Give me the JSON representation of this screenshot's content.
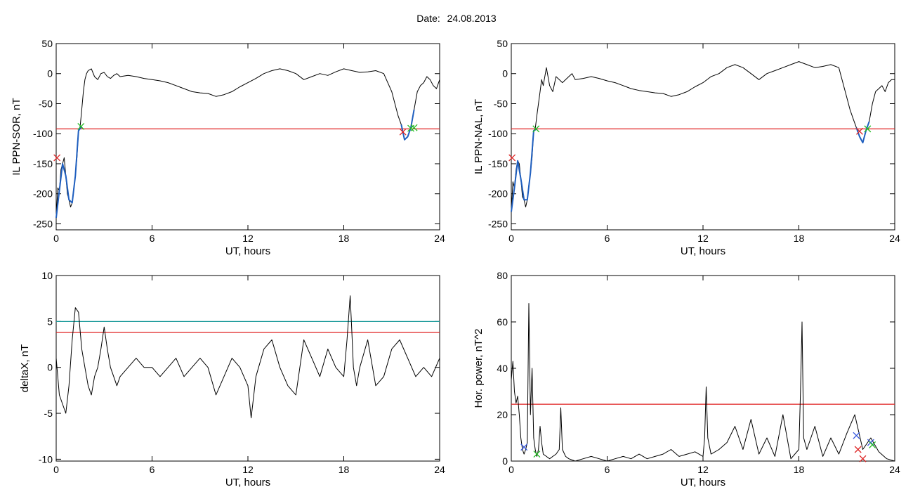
{
  "page": {
    "date_label": "Date:",
    "date_value": "24.08.2013"
  },
  "colors": {
    "trace": "#000000",
    "highlight": "#1f5fbf",
    "threshold_red": "#e02020",
    "threshold_teal": "#1a9a9a",
    "marker_green": "#22bb22",
    "marker_red": "#dd2222",
    "marker_blue": "#3355dd"
  },
  "chart_data": [
    {
      "type": "line",
      "xlabel": "UT, hours",
      "ylabel": "IL PPN-SOR, nT",
      "xlim": [
        0,
        24
      ],
      "ylim": [
        -260,
        50
      ],
      "xticks": [
        0,
        6,
        12,
        18,
        24
      ],
      "yticks": [
        50,
        0,
        -50,
        -100,
        -150,
        -200,
        -250
      ],
      "threshold_lines": [
        {
          "y": -92,
          "color": "red"
        }
      ],
      "series": [
        {
          "x": [
            0,
            0.1,
            0.2,
            0.3,
            0.4,
            0.5,
            0.6,
            0.7,
            0.8,
            0.9,
            1.0,
            1.1,
            1.2,
            1.3,
            1.4,
            1.5,
            1.6,
            1.7,
            1.8,
            1.9,
            2.0,
            2.2,
            2.4,
            2.6,
            2.8,
            3.0,
            3.2,
            3.4,
            3.6,
            3.8,
            4,
            4.5,
            5,
            5.5,
            6,
            6.5,
            7,
            7.5,
            8,
            8.5,
            9,
            9.5,
            10,
            10.5,
            11,
            11.5,
            12,
            12.5,
            13,
            13.5,
            14,
            14.5,
            15,
            15.5,
            16,
            16.5,
            17,
            17.5,
            18,
            18.5,
            19,
            19.5,
            20,
            20.5,
            21,
            21.2,
            21.4,
            21.6,
            21.8,
            22.0,
            22.2,
            22.4,
            22.6,
            22.8,
            23.0,
            23.2,
            23.4,
            23.6,
            23.8,
            24
          ],
          "y": [
            -240,
            -190,
            -195,
            -160,
            -150,
            -140,
            -170,
            -200,
            -210,
            -222,
            -215,
            -190,
            -170,
            -140,
            -95,
            -88,
            -60,
            -30,
            -10,
            0,
            5,
            8,
            -5,
            -10,
            0,
            2,
            -5,
            -8,
            -3,
            0,
            -5,
            -3,
            -5,
            -8,
            -10,
            -12,
            -15,
            -20,
            -25,
            -30,
            -32,
            -33,
            -38,
            -35,
            -30,
            -22,
            -15,
            -8,
            0,
            5,
            8,
            5,
            0,
            -10,
            -5,
            0,
            -3,
            3,
            8,
            5,
            2,
            3,
            5,
            0,
            -30,
            -50,
            -70,
            -85,
            -110,
            -105,
            -90,
            -60,
            -30,
            -20,
            -15,
            -5,
            -10,
            -20,
            -25,
            -10
          ]
        },
        {
          "x": [
            0,
            0.2,
            0.4,
            0.6,
            0.8,
            1.0,
            1.2,
            1.4,
            1.6
          ],
          "y": [
            -240,
            -195,
            -150,
            -170,
            -210,
            -215,
            -170,
            -95,
            -88
          ],
          "style": "highlight"
        },
        {
          "x": [
            21.6,
            21.8,
            22.0,
            22.2,
            22.4
          ],
          "y": [
            -85,
            -110,
            -105,
            -90,
            -60
          ],
          "style": "highlight"
        }
      ],
      "markers": [
        {
          "x": 0.05,
          "y": -140,
          "color": "red"
        },
        {
          "x": 1.55,
          "y": -88,
          "color": "green"
        },
        {
          "x": 21.7,
          "y": -97,
          "color": "red"
        },
        {
          "x": 22.2,
          "y": -91,
          "color": "green"
        },
        {
          "x": 22.4,
          "y": -90,
          "color": "green"
        }
      ]
    },
    {
      "type": "line",
      "xlabel": "UT, hours",
      "ylabel": "IL PPN-NAL, nT",
      "xlim": [
        0,
        24
      ],
      "ylim": [
        -260,
        50
      ],
      "xticks": [
        0,
        6,
        12,
        18,
        24
      ],
      "yticks": [
        50,
        0,
        -50,
        -100,
        -150,
        -200,
        -250
      ],
      "threshold_lines": [
        {
          "y": -92,
          "color": "red"
        }
      ],
      "series": [
        {
          "x": [
            0,
            0.1,
            0.2,
            0.3,
            0.4,
            0.5,
            0.6,
            0.7,
            0.8,
            0.9,
            1.0,
            1.1,
            1.2,
            1.3,
            1.4,
            1.5,
            1.6,
            1.7,
            1.8,
            1.9,
            2.0,
            2.2,
            2.4,
            2.6,
            2.8,
            3.0,
            3.2,
            3.4,
            3.6,
            3.8,
            4,
            4.5,
            5,
            5.5,
            6,
            6.5,
            7,
            7.5,
            8,
            8.5,
            9,
            9.5,
            10,
            10.5,
            11,
            11.5,
            12,
            12.5,
            13,
            13.5,
            14,
            14.5,
            15,
            15.5,
            16,
            16.5,
            17,
            17.5,
            18,
            18.5,
            19,
            19.5,
            20,
            20.5,
            21,
            21.2,
            21.4,
            21.6,
            21.8,
            22.0,
            22.2,
            22.4,
            22.6,
            22.8,
            23.0,
            23.2,
            23.4,
            23.6,
            23.8,
            24
          ],
          "y": [
            -230,
            -180,
            -190,
            -160,
            -145,
            -150,
            -175,
            -205,
            -210,
            -222,
            -210,
            -185,
            -165,
            -140,
            -95,
            -92,
            -70,
            -50,
            -30,
            -10,
            -20,
            10,
            -20,
            -30,
            -5,
            -10,
            -15,
            -10,
            -5,
            0,
            -10,
            -8,
            -5,
            -8,
            -12,
            -15,
            -20,
            -25,
            -28,
            -30,
            -32,
            -33,
            -38,
            -35,
            -30,
            -22,
            -15,
            -5,
            0,
            10,
            15,
            10,
            0,
            -10,
            0,
            5,
            10,
            15,
            20,
            15,
            10,
            12,
            15,
            10,
            -40,
            -60,
            -75,
            -90,
            -105,
            -115,
            -95,
            -80,
            -50,
            -30,
            -25,
            -20,
            -30,
            -15,
            -10,
            -10
          ]
        },
        {
          "x": [
            0,
            0.2,
            0.4,
            0.6,
            0.8,
            1.0,
            1.2,
            1.4,
            1.6
          ],
          "y": [
            -230,
            -190,
            -145,
            -175,
            -210,
            -210,
            -165,
            -95,
            -92
          ],
          "style": "highlight"
        },
        {
          "x": [
            21.6,
            21.8,
            22.0,
            22.2,
            22.4
          ],
          "y": [
            -90,
            -105,
            -115,
            -95,
            -80
          ],
          "style": "highlight"
        }
      ],
      "markers": [
        {
          "x": 0.05,
          "y": -140,
          "color": "red"
        },
        {
          "x": 1.55,
          "y": -92,
          "color": "green"
        },
        {
          "x": 21.8,
          "y": -96,
          "color": "red"
        },
        {
          "x": 22.3,
          "y": -92,
          "color": "green"
        }
      ]
    },
    {
      "type": "line",
      "xlabel": "UT, hours",
      "ylabel": "deltaX, nT",
      "xlim": [
        0,
        24
      ],
      "ylim": [
        -10.2,
        10
      ],
      "xticks": [
        0,
        6,
        12,
        18,
        24
      ],
      "yticks": [
        10,
        5,
        0,
        -5,
        -10
      ],
      "threshold_lines": [
        {
          "y": 5,
          "color": "teal"
        },
        {
          "y": 3.8,
          "color": "red"
        }
      ],
      "series": [
        {
          "x": [
            0,
            0.2,
            0.4,
            0.6,
            0.8,
            1.0,
            1.2,
            1.4,
            1.6,
            1.8,
            2.0,
            2.2,
            2.4,
            2.6,
            2.8,
            3.0,
            3.2,
            3.4,
            3.6,
            3.8,
            4.0,
            4.5,
            5,
            5.5,
            6,
            6.5,
            7,
            7.5,
            8,
            8.5,
            9,
            9.5,
            10,
            10.5,
            11,
            11.5,
            12,
            12.2,
            12.5,
            13,
            13.5,
            14,
            14.5,
            15,
            15.5,
            16,
            16.5,
            17,
            17.5,
            18,
            18.2,
            18.4,
            18.5,
            18.6,
            18.8,
            19,
            19.5,
            20,
            20.5,
            21,
            21.5,
            22,
            22.5,
            23,
            23.5,
            24
          ],
          "y": [
            1,
            -3,
            -4,
            -5,
            -2,
            3,
            6.5,
            6,
            2,
            0,
            -2,
            -3,
            -1,
            0,
            2,
            4.4,
            2,
            0,
            -1,
            -2,
            -1,
            0,
            1,
            0,
            0,
            -1,
            0,
            1,
            -1,
            0,
            1,
            0,
            -3,
            -1,
            1,
            0,
            -2,
            -5.5,
            -1,
            2,
            3,
            0,
            -2,
            -3,
            3,
            1,
            -1,
            2,
            0,
            -1,
            3,
            7.8,
            4,
            0,
            -2,
            0,
            3,
            -2,
            -1,
            2,
            3,
            1,
            -1,
            0,
            -1,
            1
          ]
        }
      ],
      "markers": []
    },
    {
      "type": "line",
      "xlabel": "UT, hours",
      "ylabel": "Hor. power, nT^2",
      "xlim": [
        0,
        24
      ],
      "ylim": [
        0,
        80
      ],
      "xticks": [
        0,
        6,
        12,
        18,
        24
      ],
      "yticks": [
        80,
        60,
        40,
        20,
        0
      ],
      "threshold_lines": [
        {
          "y": 24.5,
          "color": "red"
        }
      ],
      "series": [
        {
          "x": [
            0,
            0.1,
            0.2,
            0.3,
            0.4,
            0.5,
            0.6,
            0.7,
            0.8,
            0.9,
            1.0,
            1.1,
            1.2,
            1.3,
            1.4,
            1.5,
            1.6,
            1.7,
            1.8,
            1.9,
            2.0,
            2.2,
            2.4,
            2.6,
            2.8,
            3.0,
            3.1,
            3.2,
            3.4,
            3.6,
            4,
            4.5,
            5,
            5.5,
            6,
            6.5,
            7,
            7.5,
            8,
            8.5,
            9,
            9.5,
            10,
            10.5,
            11,
            11.5,
            12,
            12.1,
            12.2,
            12.3,
            12.5,
            13,
            13.5,
            14,
            14.5,
            15,
            15.5,
            16,
            16.5,
            17,
            17.5,
            18,
            18.1,
            18.2,
            18.3,
            18.5,
            19,
            19.5,
            20,
            20.5,
            21,
            21.5,
            22,
            22.5,
            23,
            23.5,
            24
          ],
          "y": [
            35,
            43,
            30,
            25,
            28,
            20,
            10,
            5,
            3,
            5,
            8,
            68,
            20,
            40,
            10,
            5,
            2,
            5,
            15,
            8,
            3,
            2,
            1,
            2,
            3,
            5,
            23,
            5,
            2,
            1,
            0,
            1,
            2,
            1,
            0,
            1,
            2,
            1,
            3,
            1,
            2,
            3,
            5,
            2,
            3,
            4,
            2,
            10,
            32,
            10,
            3,
            5,
            8,
            15,
            5,
            18,
            3,
            10,
            2,
            20,
            1,
            5,
            30,
            60,
            10,
            5,
            15,
            2,
            10,
            3,
            12,
            20,
            5,
            10,
            4,
            1,
            0
          ]
        }
      ],
      "markers": [
        {
          "x": 0.8,
          "y": 6,
          "color": "blue"
        },
        {
          "x": 1.6,
          "y": 3,
          "color": "green"
        },
        {
          "x": 21.6,
          "y": 11,
          "color": "blue"
        },
        {
          "x": 21.7,
          "y": 5,
          "color": "red"
        },
        {
          "x": 22.0,
          "y": 1,
          "color": "red"
        },
        {
          "x": 22.5,
          "y": 8,
          "color": "blue"
        },
        {
          "x": 22.6,
          "y": 7,
          "color": "green"
        }
      ]
    }
  ]
}
